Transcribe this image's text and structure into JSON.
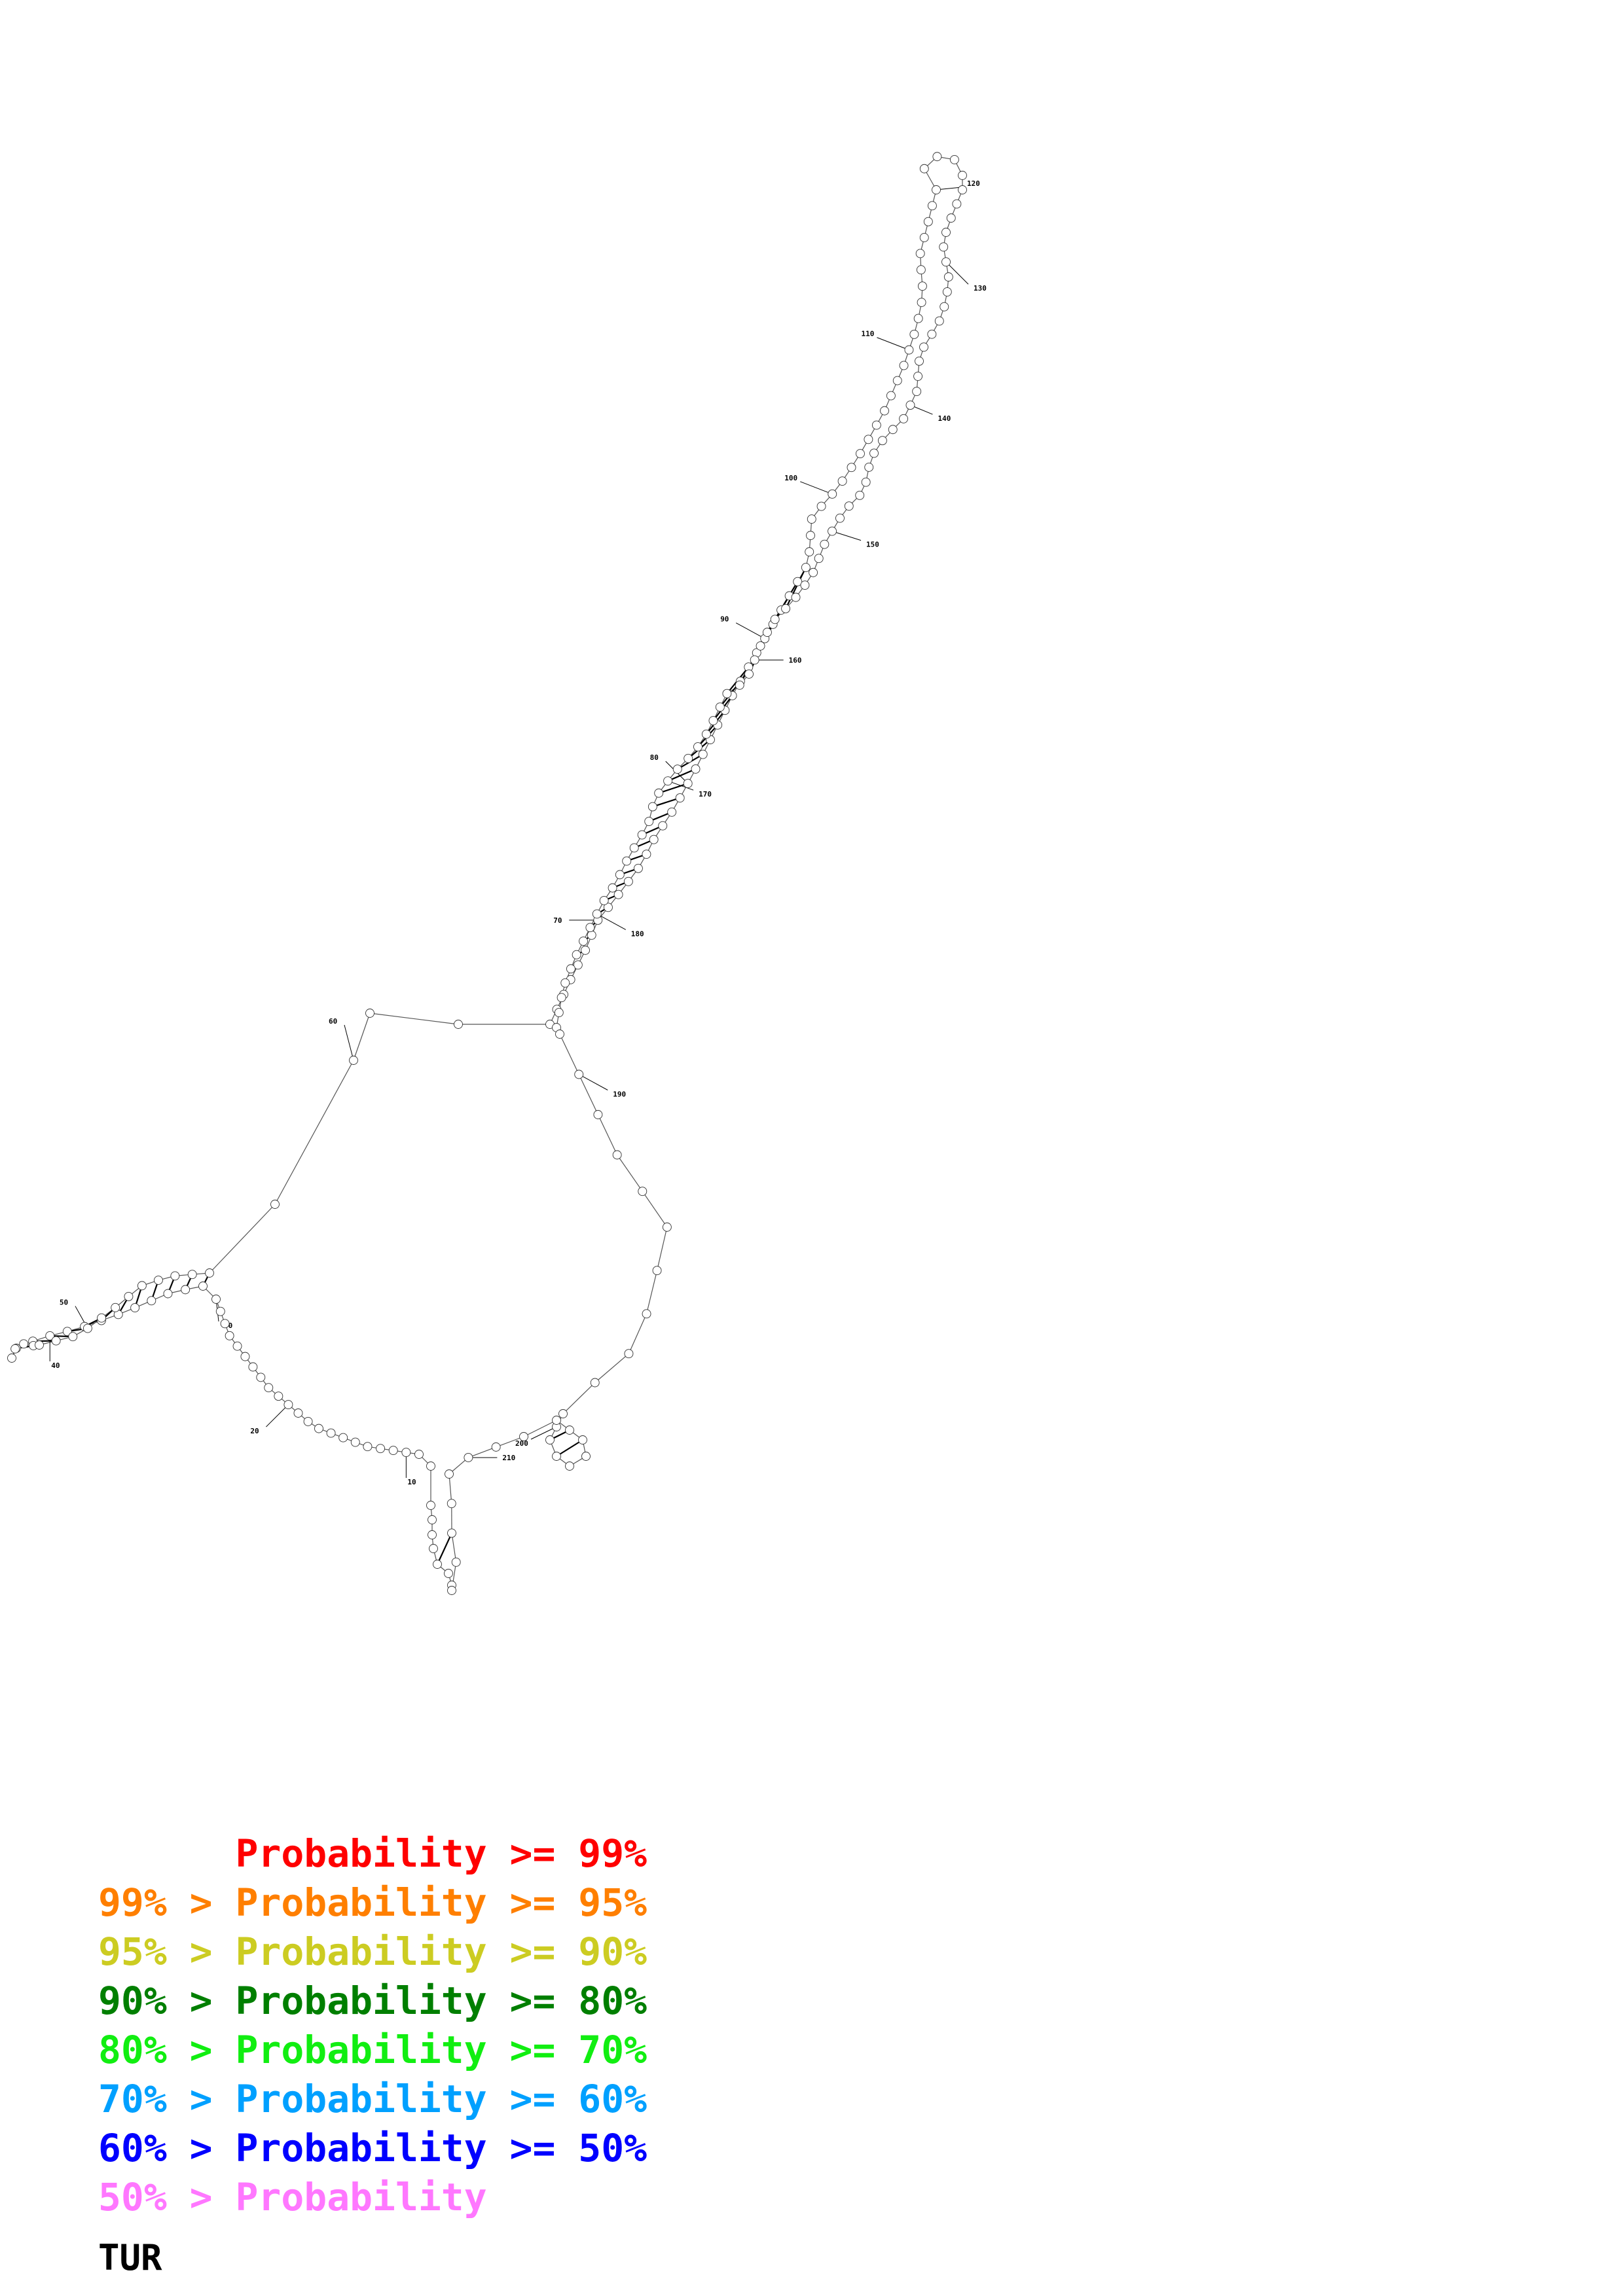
{
  "diagram": {
    "sequence_length": 215,
    "position_labels": [
      "10",
      "20",
      "30",
      "40",
      "50",
      "60",
      "70",
      "80",
      "90",
      "100",
      "110",
      "120",
      "130",
      "140",
      "150",
      "160",
      "170",
      "180",
      "190",
      "200",
      "210"
    ],
    "probability_colors": {
      "ge99": "#ff0000",
      "ge95": "#ff8000",
      "ge90": "#cccc22",
      "ge80": "#008000",
      "ge70": "#22ee22",
      "ge60": "#00a0ff",
      "ge50": "#0000ff",
      "lt50": "#ff77ff"
    }
  },
  "legend": [
    {
      "text": "      Probability >= 99%",
      "color": "#ff0000"
    },
    {
      "text": "99% > Probability >= 95%",
      "color": "#ff7f00"
    },
    {
      "text": "95% > Probability >= 90%",
      "color": "#cccc22"
    },
    {
      "text": "90% > Probability >= 80%",
      "color": "#007f00"
    },
    {
      "text": "80% > Probability >= 70%",
      "color": "#11ee11"
    },
    {
      "text": "70% > Probability >= 60%",
      "color": "#00a0ff"
    },
    {
      "text": "60% > Probability >= 50%",
      "color": "#0000ff"
    },
    {
      "text": "50% > Probability",
      "color": "#ff77ff"
    }
  ],
  "caption": "TUR"
}
